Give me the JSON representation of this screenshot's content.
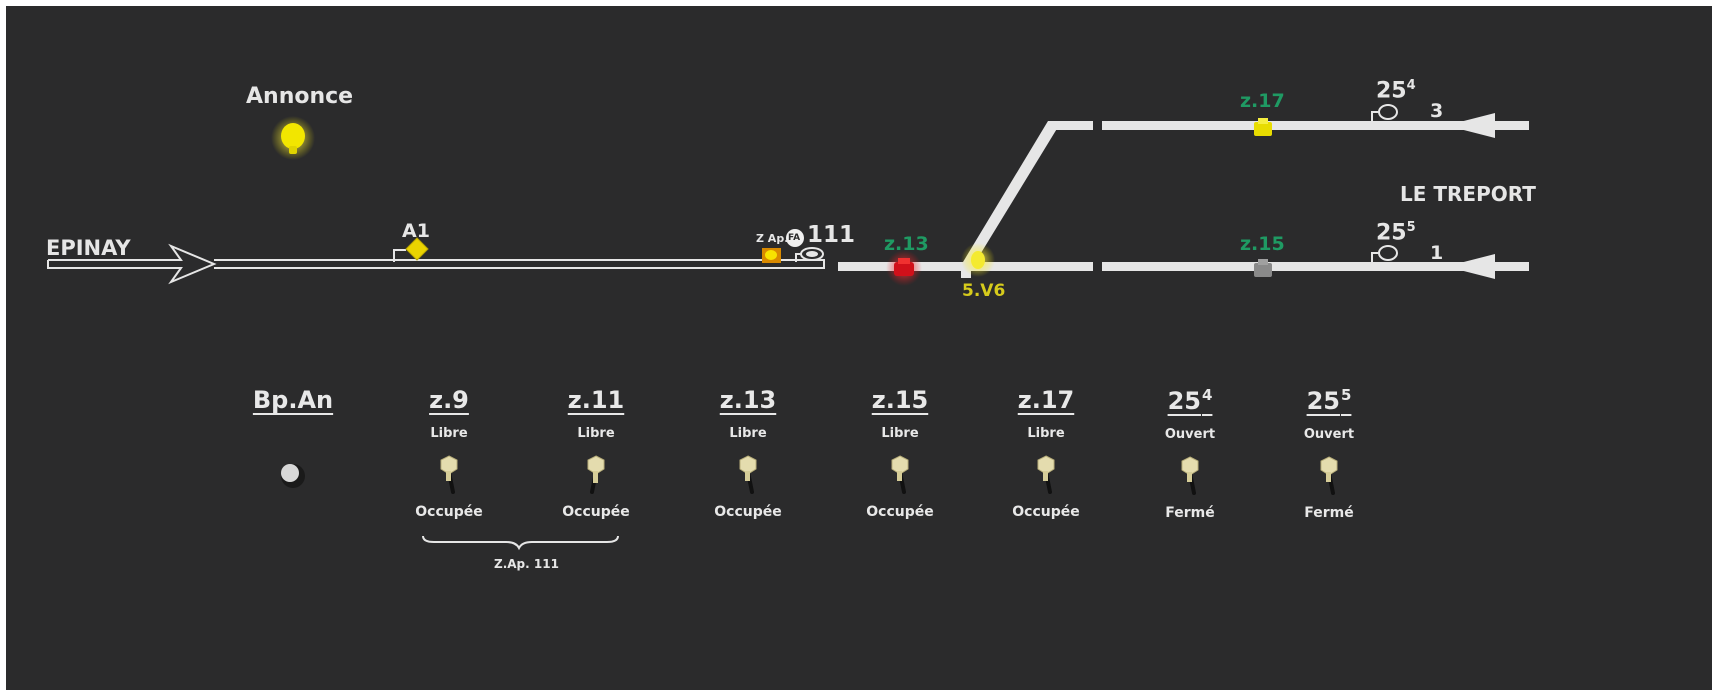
{
  "annonce_label": "Annonce",
  "origin_label": "EPINAY",
  "destination_label": "LE TREPORT",
  "signal_a1": "A1",
  "zone_approach_label": "Z Ap.",
  "fa_badge": "FA",
  "signal_111": "111",
  "zone_z13_track": "z.13",
  "zone_z15_track": "z.15",
  "zone_z17_track": "z.17",
  "switch_label": "5.V6",
  "track_3": {
    "signal": "25",
    "signal_sup": "4",
    "number": "3"
  },
  "track_1": {
    "signal": "25",
    "signal_sup": "5",
    "number": "1"
  },
  "button_bp_an": "Bp.An",
  "controls": [
    {
      "title": "z.9",
      "sup": "",
      "top": "Libre",
      "bottom": "Occupée"
    },
    {
      "title": "z.11",
      "sup": "",
      "top": "Libre",
      "bottom": "Occupée"
    },
    {
      "title": "z.13",
      "sup": "",
      "top": "Libre",
      "bottom": "Occupée"
    },
    {
      "title": "z.15",
      "sup": "",
      "top": "Libre",
      "bottom": "Occupée"
    },
    {
      "title": "z.17",
      "sup": "",
      "top": "Libre",
      "bottom": "Occupée"
    },
    {
      "title": "25",
      "sup": "4",
      "top": "Ouvert",
      "bottom": "Fermé"
    },
    {
      "title": "25",
      "sup": "5",
      "top": "Ouvert",
      "bottom": "Fermé"
    }
  ],
  "zap_group_label": "Z.Ap. 111",
  "colors": {
    "panel": "#2b2b2c",
    "track": "#e6e6e6",
    "zone_label": "#1f9a63",
    "switch_label": "#d6cb1c",
    "lamp_yellow": "#f2e600",
    "lamp_red": "#e0101a",
    "toggle": "#e4dcae"
  }
}
